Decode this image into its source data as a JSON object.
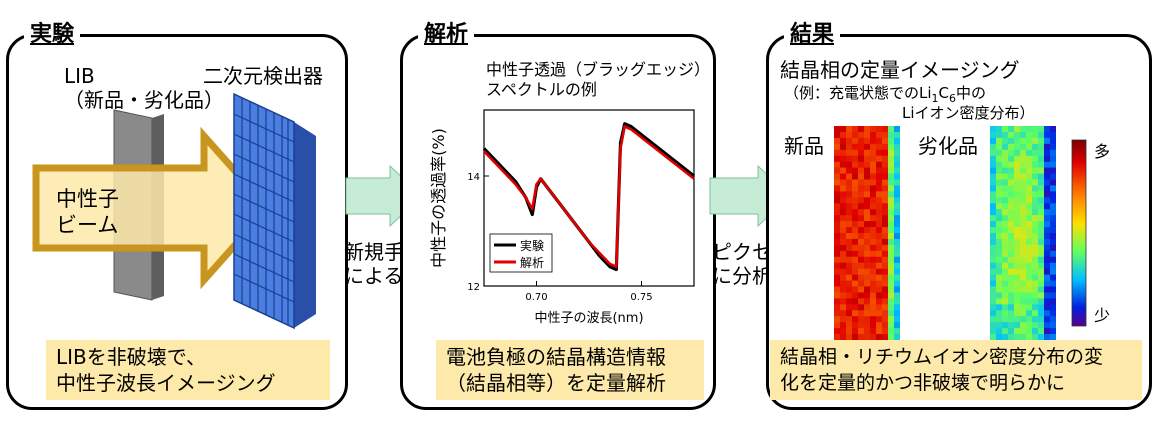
{
  "panels": {
    "experiment": {
      "title": "実験",
      "lib_label_1": "LIB",
      "lib_label_2": "（新品・劣化品）",
      "detector_label": "二次元検出器",
      "beam_label_1": "中性子",
      "beam_label_2": "ビーム",
      "caption_1": "LIBを非破壊で、",
      "caption_2": "中性子波長イメージング"
    },
    "analysis": {
      "title": "解析",
      "chart_title_1": "中性子透過（ブラッグエッジ）",
      "chart_title_2": "スペクトルの例",
      "caption_1": "電池負極の結晶構造情報",
      "caption_2": "（結晶相等）を定量解析"
    },
    "result": {
      "title": "結果",
      "heading": "結晶相の定量イメージング",
      "sub_1_prefix": "（例：充電状態でのLi",
      "sub_1_sub1": "1",
      "sub_1_mid": "C",
      "sub_1_sub2": "6",
      "sub_1_suffix": "中の",
      "sub_2": "Liイオン密度分布）",
      "new_label": "新品",
      "degraded_label": "劣化品",
      "scale_high": "多",
      "scale_low": "少",
      "caption_1": "結晶相・リチウムイオン密度分布の変",
      "caption_2": "化を定量的かつ非破壊で明らかに"
    }
  },
  "arrows": {
    "arrow1_label_1": "新規手法",
    "arrow1_label_2": "による解析",
    "arrow2_label_1": "ピクセル毎",
    "arrow2_label_2": "に分析"
  },
  "colors": {
    "beam_arrow": "#c8961e",
    "beam_fill": "#fde9a9",
    "detector": "#3d6fd6",
    "flow_arrow": "#c6ecd6",
    "caption_bg": "#fde9a9",
    "experiment_line": "#000000",
    "analysis_line": "#e00000"
  },
  "chart_data": {
    "type": "line",
    "title": "中性子透過（ブラッグエッジ）スペクトルの例",
    "xlabel": "中性子の波長(nm)",
    "ylabel": "中性子の透過率(%)",
    "xlim": [
      0.675,
      0.775
    ],
    "ylim": [
      12,
      15.2
    ],
    "xticks": [
      0.7,
      0.75
    ],
    "xtick_labels": [
      "0.70",
      "0.75"
    ],
    "yticks": [
      12,
      14
    ],
    "ytick_labels": [
      "12",
      "14"
    ],
    "legend_position": "bottom-left",
    "series": [
      {
        "name": "実験",
        "color": "#000000",
        "x": [
          0.675,
          0.68,
          0.685,
          0.69,
          0.695,
          0.698,
          0.7,
          0.702,
          0.705,
          0.71,
          0.715,
          0.72,
          0.725,
          0.73,
          0.735,
          0.738,
          0.74,
          0.742,
          0.745,
          0.75,
          0.755,
          0.76,
          0.765,
          0.77,
          0.775
        ],
        "y": [
          14.5,
          14.3,
          14.1,
          13.9,
          13.6,
          13.3,
          13.8,
          13.95,
          13.8,
          13.55,
          13.3,
          13.05,
          12.8,
          12.55,
          12.35,
          12.3,
          14.6,
          14.95,
          14.9,
          14.75,
          14.6,
          14.45,
          14.3,
          14.15,
          14.0
        ]
      },
      {
        "name": "解析",
        "color": "#e00000",
        "x": [
          0.675,
          0.68,
          0.685,
          0.69,
          0.695,
          0.698,
          0.7,
          0.702,
          0.705,
          0.71,
          0.715,
          0.72,
          0.725,
          0.73,
          0.735,
          0.738,
          0.74,
          0.742,
          0.745,
          0.75,
          0.755,
          0.76,
          0.765,
          0.77,
          0.775
        ],
        "y": [
          14.45,
          14.25,
          14.05,
          13.85,
          13.6,
          13.4,
          13.85,
          13.95,
          13.8,
          13.55,
          13.3,
          13.05,
          12.8,
          12.6,
          12.4,
          12.35,
          14.5,
          14.9,
          14.85,
          14.7,
          14.55,
          14.4,
          14.25,
          14.1,
          13.95
        ]
      }
    ]
  }
}
